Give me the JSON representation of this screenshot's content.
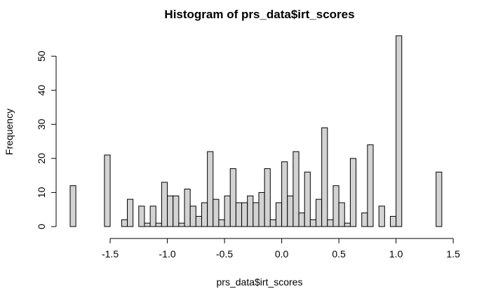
{
  "chart_data": {
    "type": "bar",
    "title": "Histogram of prs_data$irt_scores",
    "xlabel": "prs_data$irt_scores",
    "ylabel": "Frequency",
    "xlim": [
      -1.85,
      1.45
    ],
    "ylim": [
      0,
      56
    ],
    "xticks": [
      -1.5,
      -1.0,
      -0.5,
      0.0,
      0.5,
      1.0,
      1.5
    ],
    "xtick_labels": [
      "-1.5",
      "-1.0",
      "-0.5",
      "0.0",
      "0.5",
      "1.0",
      "1.5"
    ],
    "yticks": [
      0,
      10,
      20,
      30,
      40,
      50
    ],
    "ytick_labels": [
      "0",
      "10",
      "20",
      "30",
      "40",
      "50"
    ],
    "bin_start": -1.85,
    "bin_width": 0.05,
    "counts": [
      12,
      0,
      0,
      0,
      0,
      0,
      21,
      0,
      0,
      2,
      8,
      0,
      6,
      1,
      6,
      1,
      13,
      9,
      9,
      1,
      11,
      6,
      3,
      7,
      22,
      8,
      2,
      9,
      17,
      7,
      7,
      9,
      7,
      10,
      17,
      2,
      7,
      19,
      9,
      22,
      4,
      16,
      2,
      8,
      29,
      2,
      12,
      7,
      1,
      20,
      0,
      4,
      24,
      0,
      6,
      0,
      3,
      56,
      0,
      0,
      0,
      0,
      0,
      0,
      16
    ],
    "bar_color": "#d3d3d3",
    "grid": false
  }
}
